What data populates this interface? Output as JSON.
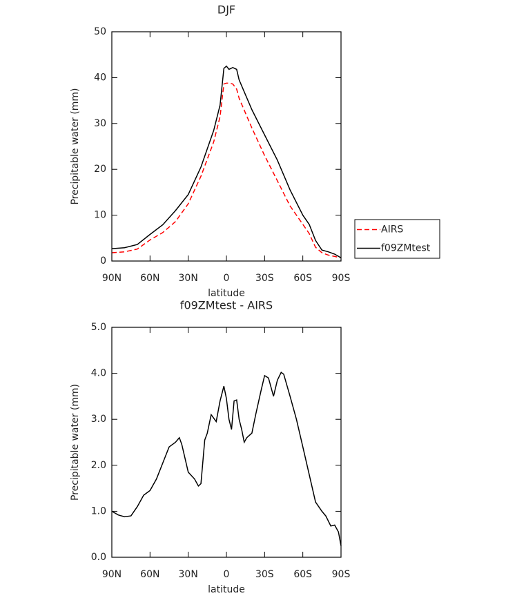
{
  "chart_data": [
    {
      "type": "line",
      "title": "DJF",
      "x_label": "latitude",
      "y_label": "Precipitable water (mm)",
      "x": [
        90,
        80,
        70,
        60,
        50,
        40,
        30,
        20,
        10,
        5,
        2,
        0,
        -2,
        -5,
        -8,
        -10,
        -20,
        -30,
        -40,
        -50,
        -60,
        -65,
        -70,
        -75,
        -80,
        -85,
        -90
      ],
      "series": [
        {
          "name": "AIRS",
          "color": "#ff0000",
          "style": "dashed",
          "values": [
            1.8,
            2.0,
            2.6,
            4.6,
            6.2,
            8.6,
            12.5,
            18.5,
            26,
            31.5,
            38.6,
            38.8,
            38.8,
            38.6,
            37.5,
            35.5,
            29,
            23,
            17.5,
            12,
            8,
            6,
            3,
            1.8,
            1.3,
            1.0,
            0.7
          ]
        },
        {
          "name": "f09ZMtest",
          "color": "#000000",
          "style": "solid",
          "values": [
            2.7,
            2.9,
            3.6,
            5.8,
            7.9,
            11,
            14.5,
            20.5,
            28.5,
            34,
            42,
            42.5,
            41.8,
            42.2,
            41.8,
            39.5,
            33,
            27.5,
            22,
            15.5,
            10,
            8,
            4.5,
            2.4,
            2.0,
            1.5,
            0.7
          ]
        }
      ],
      "xlim": [
        90,
        -90
      ],
      "xticks": [
        {
          "value": 90,
          "label": "90N"
        },
        {
          "value": 60,
          "label": "60N"
        },
        {
          "value": 30,
          "label": "30N"
        },
        0,
        {
          "value": -30,
          "label": "30S"
        },
        {
          "value": -60,
          "label": "60S"
        },
        {
          "value": -90,
          "label": "90S"
        }
      ],
      "ylim": [
        0,
        50
      ],
      "yticks": [
        0,
        10,
        20,
        30,
        40,
        50
      ],
      "legend": "right"
    },
    {
      "type": "line",
      "title": "f09ZMtest - AIRS",
      "x_label": "latitude",
      "y_label": "Precipitable water (mm)",
      "x": [
        90,
        85,
        80,
        75,
        70,
        65,
        60,
        55,
        50,
        45,
        40,
        37,
        35,
        30,
        25,
        22,
        20,
        17,
        15,
        12,
        8,
        5,
        2,
        0,
        -2,
        -4,
        -6,
        -8,
        -10,
        -12,
        -14,
        -16,
        -20,
        -23,
        -27,
        -30,
        -33,
        -37,
        -40,
        -43,
        -45,
        -50,
        -55,
        -60,
        -65,
        -70,
        -75,
        -78,
        -82,
        -85,
        -88,
        -90
      ],
      "values": [
        1.0,
        0.92,
        0.88,
        0.9,
        1.1,
        1.35,
        1.45,
        1.7,
        2.05,
        2.4,
        2.5,
        2.6,
        2.45,
        1.85,
        1.7,
        1.55,
        1.6,
        2.55,
        2.7,
        3.1,
        2.95,
        3.4,
        3.72,
        3.45,
        3.0,
        2.78,
        3.4,
        3.42,
        3.0,
        2.78,
        2.5,
        2.6,
        2.7,
        3.1,
        3.6,
        3.95,
        3.9,
        3.5,
        3.85,
        4.02,
        3.98,
        3.5,
        3.0,
        2.4,
        1.8,
        1.2,
        1.0,
        0.9,
        0.68,
        0.7,
        0.55,
        0.25
      ],
      "color": "#000000",
      "style": "solid",
      "xlim": [
        90,
        -90
      ],
      "xticks": [
        {
          "value": 90,
          "label": "90N"
        },
        {
          "value": 60,
          "label": "60N"
        },
        {
          "value": 30,
          "label": "30N"
        },
        0,
        {
          "value": -30,
          "label": "30S"
        },
        {
          "value": -60,
          "label": "60S"
        },
        {
          "value": -90,
          "label": "90S"
        }
      ],
      "ylim": [
        0,
        5
      ],
      "yticks": [
        {
          "value": 0,
          "label": "0.0"
        },
        {
          "value": 1,
          "label": "1.0"
        },
        {
          "value": 2,
          "label": "2.0"
        },
        {
          "value": 3,
          "label": "3.0"
        },
        {
          "value": 4,
          "label": "4.0"
        },
        {
          "value": 5,
          "label": "5.0"
        }
      ]
    }
  ]
}
